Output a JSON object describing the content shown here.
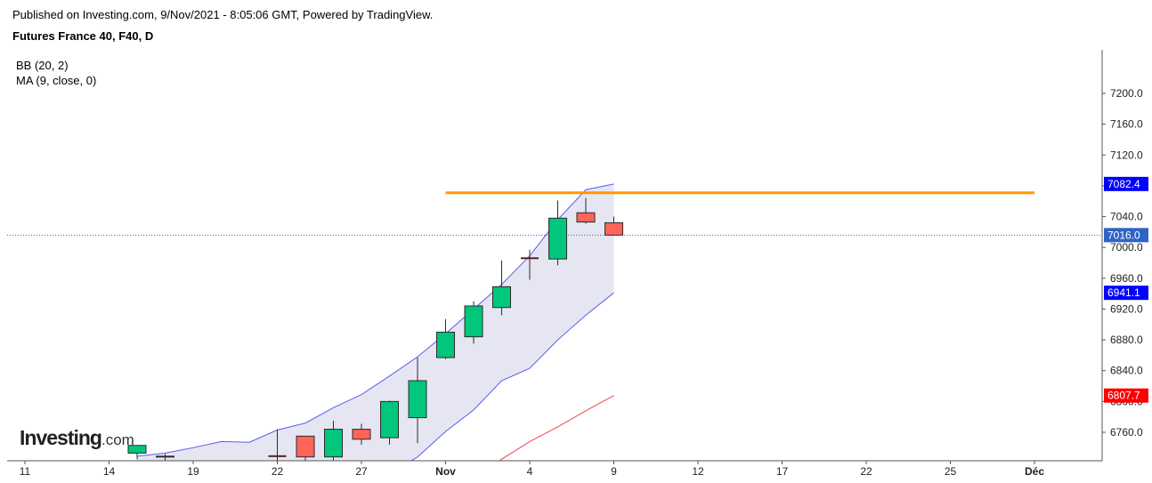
{
  "header": {
    "published": "Published on Investing.com, 9/Nov/2021 - 8:05:06 GMT, Powered by TradingView.",
    "symbol": "Futures France 40, F40, D"
  },
  "indicators": {
    "bb": "BB (20, 2)",
    "ma": "MA (9, close, 0)"
  },
  "logo": {
    "main": "Investing",
    "suffix": ".com"
  },
  "colors": {
    "up": "#00c77b",
    "down": "#ff6459",
    "band_fill": "#e6e6f2",
    "band_line": "#5b5bf2",
    "ma_line": "#f2404a",
    "resistance": "#ff9800",
    "last_price_line": "#2f63c6",
    "badge_blue": "#0000ff",
    "badge_red": "#ff0000"
  },
  "chart_data": {
    "type": "candlestick",
    "ylim": [
      6730,
      7225
    ],
    "y_ticks": [
      "6760.0",
      "6800.0",
      "6840.0",
      "6880.0",
      "6920.0",
      "6960.0",
      "7000.0",
      "7040.0",
      "7080.0",
      "7120.0",
      "7160.0",
      "7200.0"
    ],
    "x_ticks": [
      {
        "label": "11",
        "index": 0,
        "bold": false
      },
      {
        "label": "14",
        "index": 3,
        "bold": false
      },
      {
        "label": "19",
        "index": 6,
        "bold": false
      },
      {
        "label": "22",
        "index": 9,
        "bold": false
      },
      {
        "label": "27",
        "index": 12,
        "bold": false
      },
      {
        "label": "Nov",
        "index": 15,
        "bold": true
      },
      {
        "label": "4",
        "index": 18,
        "bold": false
      },
      {
        "label": "9",
        "index": 21,
        "bold": false
      },
      {
        "label": "12",
        "index": 24,
        "bold": false
      },
      {
        "label": "17",
        "index": 27,
        "bold": false
      },
      {
        "label": "22",
        "index": 30,
        "bold": false
      },
      {
        "label": "25",
        "index": 33,
        "bold": false
      },
      {
        "label": "Déc",
        "index": 36,
        "bold": true
      }
    ],
    "candles": [
      {
        "i": 4,
        "o": 6733,
        "h": 6743,
        "l": 6725,
        "c": 6743
      },
      {
        "i": 5,
        "o": 6728,
        "h": 6732,
        "l": 6720,
        "c": 6729
      },
      {
        "i": 9,
        "o": 6729,
        "h": 6764,
        "l": 6720,
        "c": 6729
      },
      {
        "i": 10,
        "o": 6755,
        "h": 6755,
        "l": 6722,
        "c": 6728
      },
      {
        "i": 11,
        "o": 6728,
        "h": 6775,
        "l": 6722,
        "c": 6764
      },
      {
        "i": 12,
        "o": 6764,
        "h": 6771,
        "l": 6744,
        "c": 6751
      },
      {
        "i": 13,
        "o": 6753,
        "h": 6801,
        "l": 6744,
        "c": 6800
      },
      {
        "i": 14,
        "o": 6779,
        "h": 6857,
        "l": 6746,
        "c": 6827
      },
      {
        "i": 15,
        "o": 6857,
        "h": 6907,
        "l": 6855,
        "c": 6890
      },
      {
        "i": 16,
        "o": 6884,
        "h": 6930,
        "l": 6875,
        "c": 6924
      },
      {
        "i": 17,
        "o": 6922,
        "h": 6983,
        "l": 6912,
        "c": 6949
      },
      {
        "i": 18,
        "o": 6986,
        "h": 6997,
        "l": 6958,
        "c": 6986
      },
      {
        "i": 19,
        "o": 6985,
        "h": 7061,
        "l": 6977,
        "c": 7038
      },
      {
        "i": 20,
        "o": 7045,
        "h": 7064,
        "l": 7031,
        "c": 7033
      },
      {
        "i": 21,
        "o": 7032,
        "h": 7040,
        "l": 7016,
        "c": 7016
      }
    ],
    "bb_upper": [
      [
        4,
        6729
      ],
      [
        5,
        6733
      ],
      [
        6,
        6740
      ],
      [
        7,
        6748
      ],
      [
        8,
        6747
      ],
      [
        9,
        6763
      ],
      [
        10,
        6772
      ],
      [
        11,
        6792
      ],
      [
        12,
        6809
      ],
      [
        13,
        6833
      ],
      [
        14,
        6858
      ],
      [
        15,
        6888
      ],
      [
        16,
        6920
      ],
      [
        17,
        6952
      ],
      [
        18,
        6989
      ],
      [
        19,
        7036
      ],
      [
        20,
        7075
      ],
      [
        21,
        7082.4
      ]
    ],
    "bb_lower": [
      [
        13,
        6706
      ],
      [
        14,
        6728
      ],
      [
        15,
        6761
      ],
      [
        16,
        6789
      ],
      [
        17,
        6827
      ],
      [
        18,
        6843
      ],
      [
        19,
        6880
      ],
      [
        20,
        6912
      ],
      [
        21,
        6941.1
      ]
    ],
    "ma": [
      [
        16,
        6697
      ],
      [
        17,
        6725
      ],
      [
        18,
        6748
      ],
      [
        19,
        6767
      ],
      [
        20,
        6788
      ],
      [
        21,
        6807.7
      ]
    ],
    "resistance": {
      "value": 7071,
      "from_index": 15,
      "to_index": 36
    },
    "last_price": 7016.0,
    "badges": [
      {
        "label": "7082.4",
        "value": 7082.4,
        "color": "#0000ff"
      },
      {
        "label": "7016.0",
        "value": 7016.0,
        "color": "#2f63c6"
      },
      {
        "label": "6941.1",
        "value": 6941.1,
        "color": "#0000ff"
      },
      {
        "label": "6807.7",
        "value": 6807.7,
        "color": "#ff0000"
      }
    ]
  }
}
